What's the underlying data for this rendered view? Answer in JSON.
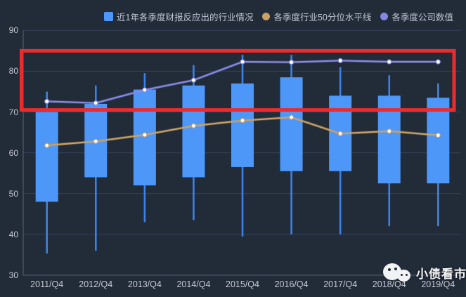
{
  "legend": {
    "items": [
      {
        "label": "近1年各季度财报反应出的行业情况",
        "marker": "square",
        "color": "#4d97f8"
      },
      {
        "label": "各季度行业50分位水平线",
        "marker": "circle",
        "color": "#c8a164"
      },
      {
        "label": "各季度公司数值",
        "marker": "circle",
        "color": "#8488e4"
      }
    ]
  },
  "watermark": {
    "text": "小债看市",
    "icon": "wechat-icon"
  },
  "colors": {
    "background": "#222b38",
    "grid": "#37415a",
    "axis": "#5a6378",
    "candle_fill": "#4d97f8",
    "whisker": "#3c82e6",
    "median_line": "#c8a164",
    "company_line": "#8488e4",
    "highlight_box": "#ee2b2b",
    "tick_text": "#c5cad3",
    "legend_text": "#bfc6d2",
    "point_fill": "#ffffff"
  },
  "chart_data": {
    "type": "candlestick",
    "title": "",
    "categories": [
      "2011/Q4",
      "2012/Q4",
      "2013/Q4",
      "2014/Q4",
      "2015/Q4",
      "2016/Q4",
      "2017/Q4",
      "2018/Q4",
      "2019/Q4"
    ],
    "series": [
      {
        "name": "近1年各季度财报反应出的行业情况",
        "type": "candlestick",
        "value_format": "[low, box_bottom, box_top, high]",
        "values": [
          [
            35.3,
            48.0,
            70.0,
            75.0
          ],
          [
            36.0,
            54.0,
            72.0,
            76.5
          ],
          [
            43.0,
            52.0,
            75.5,
            79.5
          ],
          [
            43.5,
            54.0,
            76.5,
            81.5
          ],
          [
            39.5,
            56.5,
            77.0,
            84.0
          ],
          [
            40.0,
            55.5,
            78.5,
            84.0
          ],
          [
            40.0,
            55.5,
            74.0,
            81.0
          ],
          [
            42.0,
            52.5,
            74.0,
            79.0
          ],
          [
            42.0,
            52.5,
            73.5,
            77.0
          ]
        ]
      },
      {
        "name": "各季度行业50分位水平线",
        "type": "line",
        "values": [
          61.8,
          62.8,
          64.4,
          66.6,
          67.9,
          68.7,
          64.7,
          65.3,
          64.3
        ]
      },
      {
        "name": "各季度公司数值",
        "type": "line",
        "values": [
          72.6,
          72.2,
          75.4,
          77.8,
          82.3,
          82.2,
          82.6,
          82.3,
          82.3
        ]
      }
    ],
    "ylim": [
      30,
      90
    ],
    "yticks": [
      90,
      80,
      70,
      60,
      50,
      40,
      30
    ],
    "grid": true,
    "legend_position": "top",
    "annotation_red_box": {
      "y_top": 85.0,
      "y_bottom": 70.5
    }
  }
}
